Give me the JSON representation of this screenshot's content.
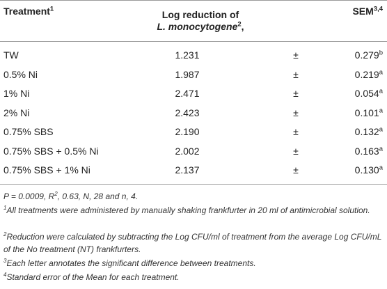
{
  "table": {
    "header": {
      "treatment": "Treatment",
      "treatment_sup": "1",
      "log_line1": "Log reduction of",
      "log_line2": "L. monocytogene",
      "log_sup": "2",
      "log_suffix": ",",
      "sem": "SEM",
      "sem_sup": "3,4"
    },
    "rows": [
      {
        "treatment": "TW",
        "log": "1.231",
        "pm": "±",
        "sem": "0.279",
        "letter": "b"
      },
      {
        "treatment": "0.5% Ni",
        "log": "1.987",
        "pm": "±",
        "sem": "0.219",
        "letter": "a"
      },
      {
        "treatment": "1% Ni",
        "log": "2.471",
        "pm": "±",
        "sem": "0.054",
        "letter": "a"
      },
      {
        "treatment": "2% Ni",
        "log": "2.423",
        "pm": "±",
        "sem": "0.101",
        "letter": "a"
      },
      {
        "treatment": "0.75% SBS",
        "log": "2.190",
        "pm": "±",
        "sem": "0.132",
        "letter": "a"
      },
      {
        "treatment": "0.75% SBS + 0.5% Ni",
        "log": "2.002",
        "pm": "±",
        "sem": "0.163",
        "letter": "a"
      },
      {
        "treatment": "0.75% SBS + 1% Ni",
        "log": "2.137",
        "pm": "±",
        "sem": "0.130",
        "letter": "a"
      }
    ]
  },
  "footnotes": {
    "stats_a": "P = 0.0009, R",
    "stats_sup": "2",
    "stats_b": ", 0.63, N, 28 and n, 4.",
    "notes": [
      {
        "mark": "1",
        "text": "All treatments were administered by manually shaking frankfurter in 20 ml of antimicrobial solution."
      },
      {
        "mark": "2",
        "text": "Reduction were calculated by subtracting the Log CFU/ml of treatment from the average Log CFU/mL of the No treatment (NT) frankfurters."
      },
      {
        "mark": "3",
        "text": "Each letter annotates the significant difference between treatments."
      },
      {
        "mark": "4",
        "text": "Standard error of the Mean for each treatment."
      }
    ]
  }
}
